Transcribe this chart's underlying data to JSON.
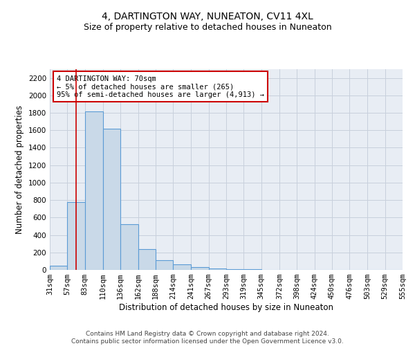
{
  "title1": "4, DARTINGTON WAY, NUNEATON, CV11 4XL",
  "title2": "Size of property relative to detached houses in Nuneaton",
  "xlabel": "Distribution of detached houses by size in Nuneaton",
  "ylabel": "Number of detached properties",
  "bin_labels": [
    "31sqm",
    "57sqm",
    "83sqm",
    "110sqm",
    "136sqm",
    "162sqm",
    "188sqm",
    "214sqm",
    "241sqm",
    "267sqm",
    "293sqm",
    "319sqm",
    "345sqm",
    "372sqm",
    "398sqm",
    "424sqm",
    "450sqm",
    "476sqm",
    "503sqm",
    "529sqm",
    "555sqm"
  ],
  "bin_edges": [
    31,
    57,
    83,
    110,
    136,
    162,
    188,
    214,
    241,
    267,
    293,
    319,
    345,
    372,
    398,
    424,
    450,
    476,
    503,
    529,
    555
  ],
  "bar_heights": [
    50,
    780,
    1820,
    1620,
    520,
    235,
    110,
    60,
    30,
    15,
    8,
    5,
    3,
    2,
    1,
    1,
    0,
    0,
    0,
    0
  ],
  "bar_color": "#c9d9e8",
  "bar_edgecolor": "#5b9bd5",
  "grid_color": "#c8d0dc",
  "bg_color": "#e8edf4",
  "red_line_x": 70,
  "red_line_color": "#cc0000",
  "annotation_text": "4 DARTINGTON WAY: 70sqm\n← 5% of detached houses are smaller (265)\n95% of semi-detached houses are larger (4,913) →",
  "annotation_box_edgecolor": "#cc0000",
  "ylim": [
    0,
    2300
  ],
  "yticks": [
    0,
    200,
    400,
    600,
    800,
    1000,
    1200,
    1400,
    1600,
    1800,
    2000,
    2200
  ],
  "footer": "Contains HM Land Registry data © Crown copyright and database right 2024.\nContains public sector information licensed under the Open Government Licence v3.0.",
  "title1_fontsize": 10,
  "title2_fontsize": 9,
  "xlabel_fontsize": 8.5,
  "ylabel_fontsize": 8.5,
  "tick_fontsize": 7.5,
  "annotation_fontsize": 7.5,
  "footer_fontsize": 6.5
}
